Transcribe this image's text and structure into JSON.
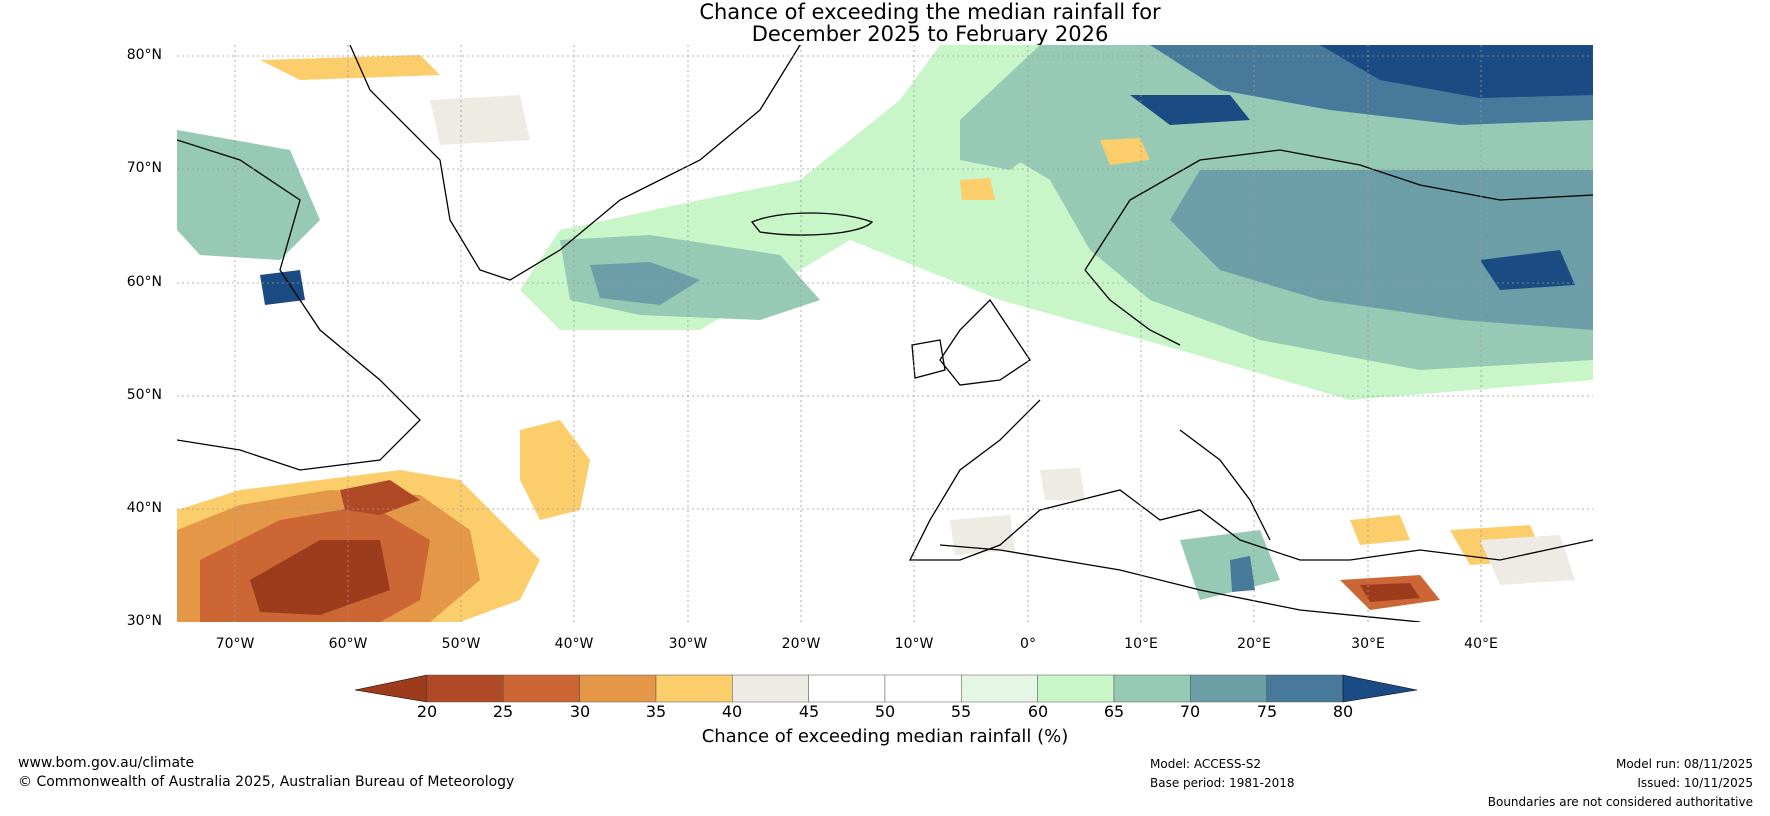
{
  "title_line1": "Chance of exceeding the median rainfall for",
  "title_line2": "December 2025 to February 2026",
  "lat_labels": [
    "80°N",
    "70°N",
    "60°N",
    "50°N",
    "40°N",
    "30°N"
  ],
  "lon_labels": [
    "70°W",
    "60°W",
    "50°W",
    "40°W",
    "30°W",
    "20°W",
    "10°W",
    "0°",
    "10°E",
    "20°E",
    "30°E",
    "40°E"
  ],
  "colorbar": {
    "ticks": [
      "20",
      "25",
      "30",
      "35",
      "40",
      "45",
      "50",
      "55",
      "60",
      "65",
      "70",
      "75",
      "80"
    ],
    "colors": [
      "#9c3c1c",
      "#b04a26",
      "#cc6634",
      "#e39747",
      "#fccd6b",
      "#eeebe5",
      "#ffffff",
      "#ffffff",
      "#e6f6e6",
      "#c8f6c8",
      "#96cab4",
      "#6c9ea8",
      "#47799b",
      "#1a4b82"
    ],
    "label": "Chance of exceeding median rainfall (%)"
  },
  "footer": {
    "website": "www.bom.gov.au/climate",
    "copyright": "© Commonwealth of Australia 2025, Australian Bureau of Meteorology",
    "model": "Model: ACCESS-S2",
    "base_period": "Base period: 1981-2018",
    "model_run": "Model run: 08/11/2025",
    "issued": "Issued: 10/11/2025",
    "disclaimer": "Boundaries are not considered authoritative"
  }
}
